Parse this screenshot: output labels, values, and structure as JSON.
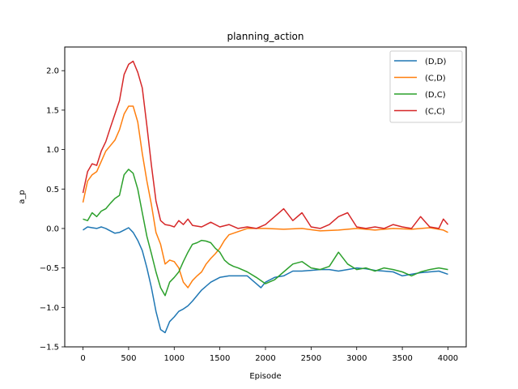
{
  "chart_data": {
    "type": "line",
    "title": "planning_action",
    "xlabel": "Episode",
    "ylabel": "a_p",
    "xlim": [
      -200,
      4200
    ],
    "ylim": [
      -1.5,
      2.3
    ],
    "xticks": [
      0,
      500,
      1000,
      1500,
      2000,
      2500,
      3000,
      3500,
      4000
    ],
    "yticks": [
      -1.5,
      -1.0,
      -0.5,
      0.0,
      0.5,
      1.0,
      1.5,
      2.0
    ],
    "grid": false,
    "legend_position": "top-right",
    "series": [
      {
        "name": "(D,D)",
        "color": "#1f77b4",
        "x": [
          0,
          50,
          100,
          150,
          200,
          250,
          300,
          350,
          400,
          450,
          500,
          550,
          600,
          650,
          700,
          750,
          800,
          850,
          900,
          950,
          1000,
          1050,
          1100,
          1150,
          1200,
          1300,
          1400,
          1500,
          1600,
          1700,
          1800,
          1900,
          1950,
          2000,
          2100,
          2200,
          2300,
          2400,
          2500,
          2600,
          2700,
          2800,
          2900,
          3000,
          3100,
          3200,
          3300,
          3400,
          3500,
          3600,
          3700,
          3800,
          3900,
          4000
        ],
        "y": [
          -0.02,
          0.02,
          0.01,
          0.0,
          0.02,
          0.0,
          -0.03,
          -0.06,
          -0.05,
          -0.02,
          0.01,
          -0.05,
          -0.15,
          -0.28,
          -0.5,
          -0.75,
          -1.05,
          -1.28,
          -1.32,
          -1.18,
          -1.12,
          -1.05,
          -1.02,
          -0.98,
          -0.92,
          -0.78,
          -0.68,
          -0.62,
          -0.6,
          -0.6,
          -0.6,
          -0.7,
          -0.75,
          -0.68,
          -0.62,
          -0.6,
          -0.54,
          -0.54,
          -0.53,
          -0.52,
          -0.52,
          -0.54,
          -0.52,
          -0.5,
          -0.51,
          -0.53,
          -0.54,
          -0.55,
          -0.6,
          -0.58,
          -0.56,
          -0.55,
          -0.54,
          -0.58
        ]
      },
      {
        "name": "(C,D)",
        "color": "#ff7f0e",
        "x": [
          0,
          50,
          100,
          150,
          200,
          250,
          300,
          350,
          400,
          450,
          500,
          550,
          600,
          650,
          700,
          750,
          800,
          850,
          900,
          950,
          1000,
          1050,
          1100,
          1150,
          1200,
          1250,
          1300,
          1350,
          1400,
          1450,
          1500,
          1550,
          1600,
          1700,
          1800,
          1900,
          2000,
          2200,
          2400,
          2600,
          2800,
          3000,
          3200,
          3400,
          3600,
          3800,
          3950,
          4000
        ],
        "y": [
          0.33,
          0.6,
          0.68,
          0.72,
          0.85,
          0.98,
          1.05,
          1.12,
          1.25,
          1.45,
          1.55,
          1.55,
          1.35,
          0.95,
          0.6,
          0.3,
          -0.05,
          -0.2,
          -0.45,
          -0.4,
          -0.42,
          -0.5,
          -0.68,
          -0.75,
          -0.66,
          -0.6,
          -0.55,
          -0.45,
          -0.38,
          -0.32,
          -0.25,
          -0.15,
          -0.08,
          -0.04,
          0.0,
          0.0,
          0.0,
          -0.01,
          0.0,
          -0.03,
          -0.02,
          0.0,
          -0.02,
          0.0,
          -0.01,
          0.01,
          -0.02,
          -0.05
        ]
      },
      {
        "name": "(D,C)",
        "color": "#2ca02c",
        "x": [
          0,
          50,
          100,
          150,
          200,
          250,
          300,
          350,
          400,
          450,
          500,
          550,
          600,
          650,
          700,
          750,
          800,
          850,
          900,
          950,
          1000,
          1050,
          1100,
          1150,
          1200,
          1250,
          1300,
          1350,
          1400,
          1450,
          1500,
          1550,
          1600,
          1650,
          1700,
          1800,
          1900,
          2000,
          2100,
          2200,
          2300,
          2400,
          2500,
          2600,
          2700,
          2800,
          2900,
          3000,
          3100,
          3200,
          3300,
          3400,
          3500,
          3600,
          3700,
          3800,
          3900,
          4000
        ],
        "y": [
          0.12,
          0.1,
          0.2,
          0.15,
          0.22,
          0.25,
          0.32,
          0.38,
          0.42,
          0.68,
          0.75,
          0.7,
          0.5,
          0.2,
          -0.1,
          -0.32,
          -0.55,
          -0.75,
          -0.85,
          -0.68,
          -0.62,
          -0.55,
          -0.42,
          -0.3,
          -0.2,
          -0.18,
          -0.15,
          -0.16,
          -0.18,
          -0.25,
          -0.3,
          -0.4,
          -0.45,
          -0.48,
          -0.5,
          -0.55,
          -0.62,
          -0.7,
          -0.65,
          -0.55,
          -0.45,
          -0.42,
          -0.5,
          -0.52,
          -0.48,
          -0.3,
          -0.45,
          -0.52,
          -0.5,
          -0.54,
          -0.5,
          -0.52,
          -0.55,
          -0.6,
          -0.55,
          -0.52,
          -0.5,
          -0.52
        ]
      },
      {
        "name": "(C,C)",
        "color": "#d62728",
        "x": [
          0,
          50,
          100,
          150,
          200,
          250,
          300,
          350,
          400,
          450,
          500,
          550,
          600,
          650,
          700,
          750,
          800,
          850,
          900,
          950,
          1000,
          1050,
          1100,
          1150,
          1200,
          1300,
          1400,
          1500,
          1600,
          1700,
          1800,
          1900,
          2000,
          2100,
          2200,
          2300,
          2400,
          2500,
          2600,
          2700,
          2800,
          2900,
          3000,
          3100,
          3200,
          3300,
          3400,
          3500,
          3600,
          3700,
          3800,
          3900,
          3950,
          4000
        ],
        "y": [
          0.45,
          0.72,
          0.82,
          0.8,
          0.98,
          1.1,
          1.28,
          1.45,
          1.62,
          1.95,
          2.08,
          2.12,
          1.98,
          1.78,
          1.3,
          0.8,
          0.35,
          0.1,
          0.05,
          0.04,
          0.02,
          0.1,
          0.05,
          0.12,
          0.04,
          0.02,
          0.08,
          0.02,
          0.05,
          0.0,
          0.02,
          0.0,
          0.05,
          0.15,
          0.25,
          0.1,
          0.2,
          0.02,
          0.0,
          0.05,
          0.15,
          0.2,
          0.02,
          0.0,
          0.02,
          0.0,
          0.05,
          0.02,
          0.0,
          0.15,
          0.02,
          0.0,
          0.12,
          0.05
        ]
      }
    ]
  }
}
